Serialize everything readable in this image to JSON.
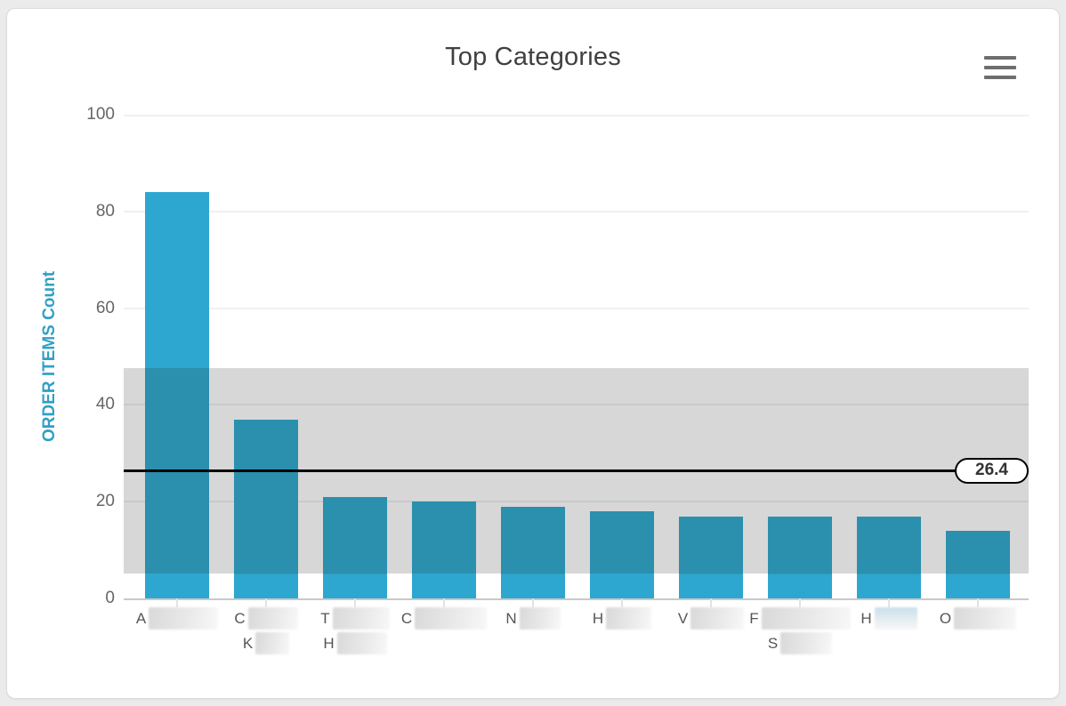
{
  "header": {
    "title": "Top Categories",
    "menu_icon": "hamburger-menu-icon"
  },
  "chart_data": {
    "type": "bar",
    "title": "Top Categories",
    "xlabel": "",
    "ylabel": "ORDER ITEMS Count",
    "ylim": [
      0,
      100
    ],
    "yticks": [
      0,
      20,
      40,
      60,
      80,
      100
    ],
    "grid": true,
    "legend": false,
    "values": [
      84,
      37,
      21,
      20,
      19,
      18,
      17,
      17,
      17,
      14
    ],
    "categories": [
      {
        "redacted": true,
        "lines": [
          {
            "text": "A",
            "redacted_width": 78
          }
        ]
      },
      {
        "redacted": true,
        "lines": [
          {
            "text": "C",
            "redacted_width": 56
          },
          {
            "text": "K",
            "redacted_width": 38
          }
        ]
      },
      {
        "redacted": true,
        "lines": [
          {
            "text": "T",
            "redacted_width": 64
          },
          {
            "text": "H",
            "redacted_width": 56
          }
        ]
      },
      {
        "redacted": true,
        "lines": [
          {
            "text": "C",
            "redacted_width": 81
          }
        ]
      },
      {
        "redacted": true,
        "lines": [
          {
            "text": "N",
            "redacted_width": 46
          }
        ]
      },
      {
        "redacted": true,
        "lines": [
          {
            "text": "H",
            "redacted_width": 51
          }
        ]
      },
      {
        "redacted": true,
        "lines": [
          {
            "text": "V",
            "redacted_width": 60
          }
        ]
      },
      {
        "redacted": true,
        "lines": [
          {
            "text": "F",
            "redacted_width": 100
          },
          {
            "text": "S",
            "redacted_width": 58
          }
        ]
      },
      {
        "redacted": true,
        "lines": [
          {
            "text": "H",
            "redacted_width": 48,
            "tint": "blue"
          }
        ]
      },
      {
        "redacted": true,
        "lines": [
          {
            "text": "O",
            "redacted_width": 70
          }
        ]
      }
    ],
    "plot_line": {
      "value": 26.4,
      "label": "26.4"
    },
    "plot_band": {
      "from": 5.1,
      "to": 47.6
    }
  },
  "colors": {
    "bar": "#2da7d0",
    "bar_in_band": "#2b8fae",
    "band": "#d7d7d7",
    "plot_line": "#000000",
    "axis_line": "#c9c9c9",
    "y_axis_title": "#31a0c6",
    "tick_label": "#666666",
    "title": "#404040"
  }
}
